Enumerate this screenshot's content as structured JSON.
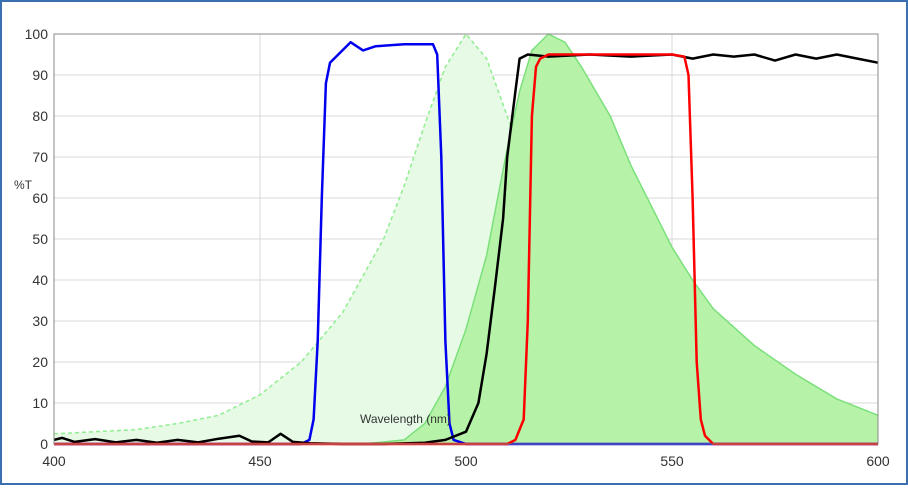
{
  "chart_data": {
    "type": "area",
    "title": "",
    "xlabel": "Wavelength (nm)",
    "ylabel": "%T",
    "xlim": [
      400,
      600
    ],
    "ylim": [
      0,
      100
    ],
    "x_ticks": [
      "400",
      "450",
      "500",
      "550",
      "600"
    ],
    "y_ticks": [
      "0",
      "10",
      "20",
      "30",
      "40",
      "50",
      "60",
      "70",
      "80",
      "90",
      "100"
    ],
    "grid": true,
    "series": [
      {
        "kind": "area",
        "style": "dashed-light",
        "color": "#90ee90",
        "fill": "#e6fae6",
        "points": [
          [
            400,
            2.5
          ],
          [
            420,
            3.5
          ],
          [
            430,
            5
          ],
          [
            440,
            7
          ],
          [
            450,
            12
          ],
          [
            460,
            20
          ],
          [
            470,
            32
          ],
          [
            480,
            50
          ],
          [
            485,
            63
          ],
          [
            490,
            78
          ],
          [
            495,
            92
          ],
          [
            500,
            100
          ],
          [
            505,
            94
          ],
          [
            510,
            80
          ],
          [
            515,
            64
          ],
          [
            520,
            48
          ],
          [
            525,
            35
          ],
          [
            530,
            24
          ],
          [
            535,
            16
          ],
          [
            540,
            11
          ],
          [
            545,
            7
          ],
          [
            550,
            5
          ],
          [
            560,
            3
          ],
          [
            570,
            2
          ],
          [
            580,
            1.5
          ],
          [
            600,
            1
          ]
        ]
      },
      {
        "kind": "area",
        "style": "solid",
        "color": "#7be07b",
        "fill": "#b6f3a8",
        "points": [
          [
            475,
            0
          ],
          [
            485,
            1
          ],
          [
            490,
            5
          ],
          [
            495,
            14
          ],
          [
            500,
            28
          ],
          [
            505,
            46
          ],
          [
            510,
            72
          ],
          [
            513,
            86
          ],
          [
            516,
            96
          ],
          [
            520,
            100
          ],
          [
            524,
            98
          ],
          [
            528,
            92
          ],
          [
            535,
            80
          ],
          [
            540,
            68
          ],
          [
            545,
            58
          ],
          [
            550,
            48
          ],
          [
            555,
            40
          ],
          [
            560,
            33
          ],
          [
            570,
            24
          ],
          [
            580,
            17
          ],
          [
            590,
            11
          ],
          [
            600,
            7
          ]
        ]
      },
      {
        "kind": "line",
        "color": "#0000ee",
        "points": [
          [
            400,
            0
          ],
          [
            460,
            0
          ],
          [
            462,
            1
          ],
          [
            463,
            6
          ],
          [
            464,
            25
          ],
          [
            465,
            60
          ],
          [
            466,
            88
          ],
          [
            467,
            93
          ],
          [
            470,
            96
          ],
          [
            472,
            98
          ],
          [
            475,
            96
          ],
          [
            478,
            97
          ],
          [
            485,
            97.5
          ],
          [
            490,
            97.5
          ],
          [
            492,
            97.5
          ],
          [
            493,
            95
          ],
          [
            494,
            70
          ],
          [
            495,
            25
          ],
          [
            496,
            5
          ],
          [
            497,
            1
          ],
          [
            500,
            0
          ],
          [
            600,
            0
          ]
        ]
      },
      {
        "kind": "line",
        "color": "#000000",
        "points": [
          [
            400,
            1
          ],
          [
            402,
            1.5
          ],
          [
            405,
            0.5
          ],
          [
            410,
            1.2
          ],
          [
            415,
            0.4
          ],
          [
            420,
            1
          ],
          [
            425,
            0.3
          ],
          [
            430,
            1
          ],
          [
            435,
            0.4
          ],
          [
            440,
            1.3
          ],
          [
            445,
            2
          ],
          [
            448,
            0.6
          ],
          [
            452,
            0.4
          ],
          [
            455,
            2.5
          ],
          [
            458,
            0.5
          ],
          [
            462,
            0.2
          ],
          [
            470,
            0
          ],
          [
            480,
            0
          ],
          [
            490,
            0.3
          ],
          [
            495,
            1
          ],
          [
            500,
            3
          ],
          [
            503,
            10
          ],
          [
            505,
            22
          ],
          [
            507,
            38
          ],
          [
            509,
            55
          ],
          [
            510,
            70
          ],
          [
            512,
            86
          ],
          [
            513,
            94
          ],
          [
            515,
            95
          ],
          [
            520,
            94.5
          ],
          [
            530,
            95
          ],
          [
            540,
            94.5
          ],
          [
            550,
            95
          ],
          [
            555,
            94
          ],
          [
            560,
            95
          ],
          [
            565,
            94.5
          ],
          [
            570,
            95
          ],
          [
            575,
            93.5
          ],
          [
            580,
            95
          ],
          [
            585,
            94
          ],
          [
            590,
            95
          ],
          [
            595,
            94
          ],
          [
            600,
            93
          ]
        ]
      },
      {
        "kind": "line",
        "color": "#ff0000",
        "points": [
          [
            400,
            0
          ],
          [
            510,
            0
          ],
          [
            512,
            1
          ],
          [
            514,
            6
          ],
          [
            515,
            30
          ],
          [
            516,
            80
          ],
          [
            517,
            92
          ],
          [
            518,
            94
          ],
          [
            520,
            95
          ],
          [
            530,
            95
          ],
          [
            540,
            95
          ],
          [
            550,
            95
          ],
          [
            553,
            94.5
          ],
          [
            554,
            90
          ],
          [
            555,
            60
          ],
          [
            556,
            20
          ],
          [
            557,
            6
          ],
          [
            558,
            2
          ],
          [
            560,
            0
          ],
          [
            600,
            0
          ]
        ]
      }
    ]
  }
}
